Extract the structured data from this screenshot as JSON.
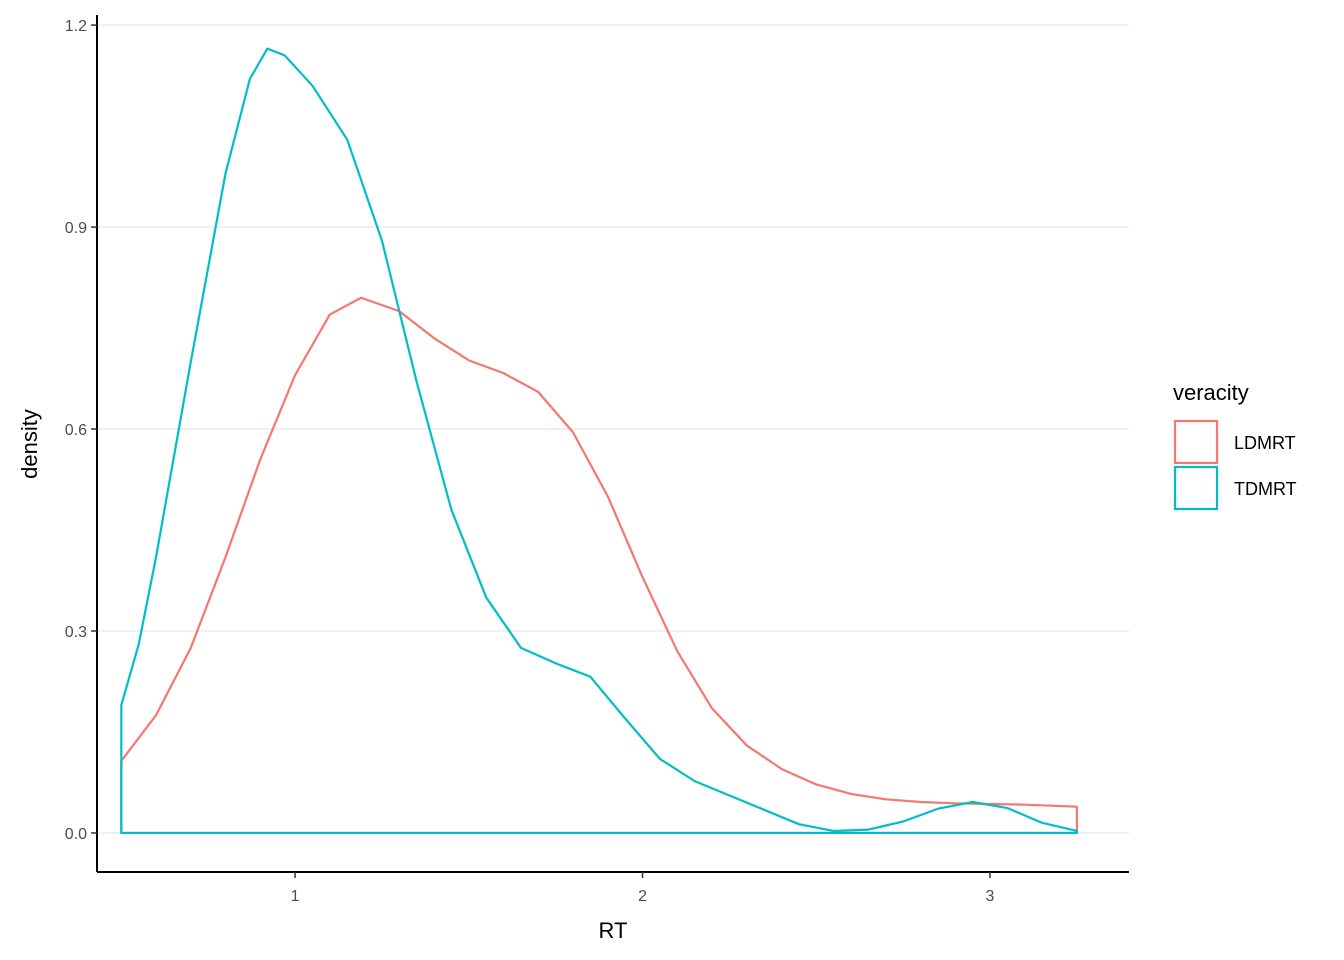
{
  "chart_data": {
    "type": "line",
    "title": "",
    "xlabel": "RT",
    "ylabel": "density",
    "xlim": [
      0.43,
      3.4
    ],
    "ylim": [
      -0.058,
      1.215
    ],
    "x_ticks": [
      1,
      2,
      3
    ],
    "y_ticks": [
      0.0,
      0.3,
      0.6,
      0.9,
      1.2
    ],
    "x_tick_labels": [
      "1",
      "2",
      "3"
    ],
    "y_tick_labels": [
      "0.0",
      "0.3",
      "0.6",
      "0.9",
      "1.2"
    ],
    "grid": "horizontal-major",
    "legend": {
      "title": "veracity",
      "position": "right"
    },
    "series": [
      {
        "name": "LDMRT",
        "color": "#F8766D",
        "points": [
          [
            0.5,
            0.107
          ],
          [
            0.6,
            0.175
          ],
          [
            0.7,
            0.275
          ],
          [
            0.8,
            0.41
          ],
          [
            0.9,
            0.555
          ],
          [
            1.0,
            0.68
          ],
          [
            1.1,
            0.77
          ],
          [
            1.19,
            0.795
          ],
          [
            1.3,
            0.775
          ],
          [
            1.4,
            0.735
          ],
          [
            1.5,
            0.702
          ],
          [
            1.6,
            0.683
          ],
          [
            1.7,
            0.655
          ],
          [
            1.8,
            0.595
          ],
          [
            1.9,
            0.5
          ],
          [
            2.0,
            0.38
          ],
          [
            2.1,
            0.27
          ],
          [
            2.2,
            0.185
          ],
          [
            2.3,
            0.13
          ],
          [
            2.4,
            0.095
          ],
          [
            2.5,
            0.072
          ],
          [
            2.6,
            0.058
          ],
          [
            2.7,
            0.05
          ],
          [
            2.8,
            0.046
          ],
          [
            2.9,
            0.044
          ],
          [
            3.0,
            0.043
          ],
          [
            3.1,
            0.042
          ],
          [
            3.25,
            0.039
          ]
        ]
      },
      {
        "name": "TDMRT",
        "color": "#00BFC4",
        "points": [
          [
            0.5,
            0.19
          ],
          [
            0.55,
            0.28
          ],
          [
            0.6,
            0.41
          ],
          [
            0.7,
            0.7
          ],
          [
            0.8,
            0.98
          ],
          [
            0.87,
            1.12
          ],
          [
            0.92,
            1.165
          ],
          [
            0.97,
            1.155
          ],
          [
            1.05,
            1.11
          ],
          [
            1.15,
            1.03
          ],
          [
            1.25,
            0.88
          ],
          [
            1.35,
            0.67
          ],
          [
            1.45,
            0.48
          ],
          [
            1.55,
            0.35
          ],
          [
            1.65,
            0.275
          ],
          [
            1.75,
            0.252
          ],
          [
            1.85,
            0.232
          ],
          [
            1.95,
            0.17
          ],
          [
            2.05,
            0.11
          ],
          [
            2.15,
            0.077
          ],
          [
            2.3,
            0.045
          ],
          [
            2.45,
            0.013
          ],
          [
            2.55,
            0.003
          ],
          [
            2.65,
            0.005
          ],
          [
            2.75,
            0.017
          ],
          [
            2.85,
            0.036
          ],
          [
            2.95,
            0.046
          ],
          [
            3.05,
            0.037
          ],
          [
            3.15,
            0.015
          ],
          [
            3.25,
            0.003
          ]
        ]
      }
    ]
  }
}
